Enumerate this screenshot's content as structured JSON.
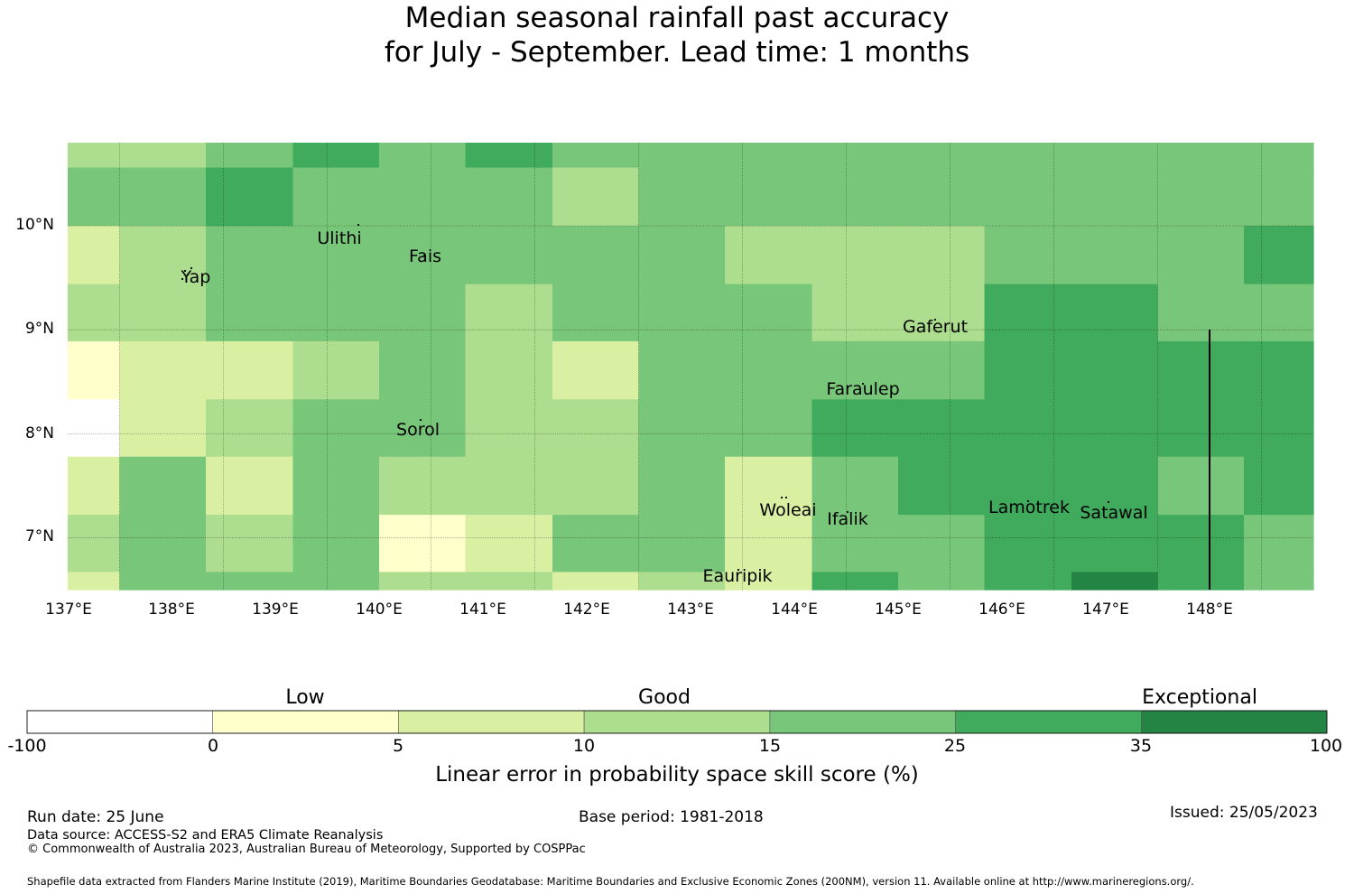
{
  "title": {
    "line1": "Median seasonal rainfall past accuracy",
    "line2": "for July - September. Lead time: 1 months"
  },
  "map": {
    "lat_ticks": [
      "10°N",
      "9°N",
      "8°N"
    ],
    "lat_ticks_low": [
      "7°N"
    ],
    "lon_ticks": [
      "137°E",
      "138°E",
      "139°E",
      "140°E",
      "141°E",
      "142°E",
      "143°E",
      "144°E",
      "145°E",
      "146°E",
      "147°E",
      "148°E"
    ],
    "extent": {
      "lon_min": 136.5,
      "lon_max": 148.5,
      "lat_min": 6.5,
      "lat_max": 10.8
    },
    "places": {
      "yap": "Yap",
      "ulithi": "Ulithi",
      "fais": "Fais",
      "gaferut": "Gaferut",
      "faraulep": "Faraulep",
      "sorol": "Sorol",
      "woleai": "Woleai",
      "ifalik": "Ifalik",
      "lamotrek": "Lamotrek",
      "satawal": "Satawal",
      "eauripik": "Eauripik"
    },
    "grid_lon_edges": [
      136.5,
      137.0,
      137.83,
      138.67,
      139.5,
      140.33,
      141.17,
      142.0,
      142.83,
      143.67,
      144.5,
      145.33,
      146.17,
      147.0,
      147.83,
      148.5
    ],
    "grid_lat_edges": [
      10.8,
      10.56,
      10.0,
      9.44,
      8.89,
      8.33,
      7.78,
      7.22,
      6.67,
      6.5
    ],
    "skill_category_grid": [
      [
        3,
        3,
        4,
        5,
        4,
        5,
        4,
        4,
        4,
        4,
        4,
        4,
        4,
        4,
        4
      ],
      [
        4,
        4,
        5,
        4,
        4,
        4,
        3,
        4,
        4,
        4,
        4,
        4,
        4,
        4,
        4
      ],
      [
        2,
        3,
        4,
        4,
        4,
        4,
        4,
        4,
        3,
        3,
        3,
        4,
        4,
        4,
        5
      ],
      [
        3,
        3,
        4,
        4,
        4,
        3,
        4,
        4,
        4,
        3,
        3,
        5,
        5,
        4,
        4
      ],
      [
        1,
        2,
        2,
        3,
        4,
        3,
        2,
        4,
        4,
        4,
        4,
        5,
        5,
        5,
        5
      ],
      [
        0,
        2,
        3,
        4,
        4,
        3,
        3,
        4,
        4,
        5,
        5,
        5,
        5,
        5,
        5
      ],
      [
        2,
        4,
        2,
        4,
        3,
        3,
        3,
        4,
        2,
        4,
        5,
        5,
        5,
        4,
        5
      ],
      [
        3,
        4,
        3,
        4,
        1,
        2,
        4,
        4,
        2,
        4,
        4,
        5,
        5,
        5,
        4
      ],
      [
        2,
        4,
        4,
        4,
        3,
        3,
        2,
        3,
        2,
        5,
        4,
        5,
        6,
        5,
        4
      ]
    ]
  },
  "colorbar": {
    "category_labels": {
      "low": "Low",
      "good": "Good",
      "exceptional": "Exceptional"
    },
    "boundaries": [
      "-100",
      "0",
      "5",
      "10",
      "15",
      "25",
      "35",
      "100"
    ],
    "colors": [
      "#ffffff",
      "#ffffcc",
      "#d9f0a3",
      "#addd8e",
      "#78c679",
      "#41ab5d",
      "#238443"
    ],
    "title": "Linear error in probability space skill score (%)"
  },
  "footer": {
    "run_date": "Run date: 25 June",
    "base_period": "Base period: 1981-2018",
    "issued": "Issued: 25/05/2023",
    "data_source": "Data source: ACCESS-S2 and ERA5 Climate Reanalysis",
    "copyright": "© Commonwealth of Australia 2023, Australian Bureau of Meteorology, Supported by COSPPac",
    "shapefile": "Shapefile data extracted from Flanders Marine Institute (2019), Maritime Boundaries Geodatabase: Maritime Boundaries and Exclusive Economic Zones (200NM), version 11. Available online at http://www.marineregions.org/."
  }
}
